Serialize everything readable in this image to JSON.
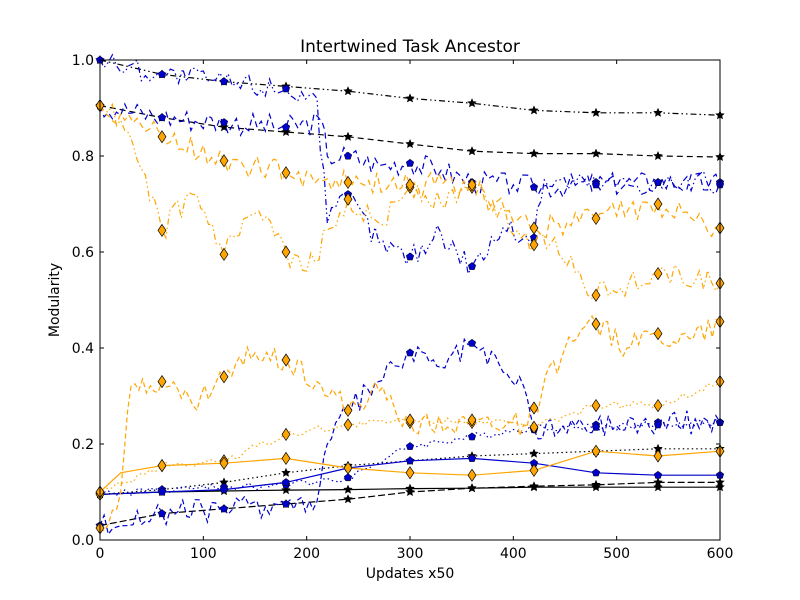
{
  "chart_data": {
    "type": "line",
    "title": "Intertwined Task Ancestor",
    "xlabel": "Updates x50",
    "ylabel": "Modularity",
    "xlim": [
      0,
      600
    ],
    "ylim": [
      0.0,
      1.0
    ],
    "xticks": [
      0,
      100,
      200,
      300,
      400,
      500,
      600
    ],
    "xtick_labels": [
      "0",
      "100",
      "200",
      "300",
      "400",
      "500",
      "600"
    ],
    "yticks": [
      0.0,
      0.2,
      0.4,
      0.6,
      0.8,
      1.0
    ],
    "ytick_labels": [
      "0.0",
      "0.2",
      "0.4",
      "0.6",
      "0.8",
      "1.0"
    ],
    "grid": false,
    "legend": "none",
    "colors": {
      "black": "#000000",
      "blue": "#0000cc",
      "orange": "#ffa500"
    },
    "series": [
      {
        "color": "black",
        "linestyle": "dashdot-dot",
        "marker": "star",
        "points": [
          [
            0,
            1.0
          ],
          [
            60,
            0.97
          ],
          [
            120,
            0.955
          ],
          [
            180,
            0.945
          ],
          [
            240,
            0.935
          ],
          [
            300,
            0.92
          ],
          [
            360,
            0.91
          ],
          [
            420,
            0.895
          ],
          [
            480,
            0.89
          ],
          [
            540,
            0.89
          ],
          [
            600,
            0.885
          ]
        ]
      },
      {
        "color": "black",
        "linestyle": "dashed",
        "marker": "star",
        "points": [
          [
            0,
            0.905
          ],
          [
            60,
            0.88
          ],
          [
            120,
            0.86
          ],
          [
            180,
            0.85
          ],
          [
            240,
            0.84
          ],
          [
            300,
            0.825
          ],
          [
            360,
            0.81
          ],
          [
            420,
            0.805
          ],
          [
            480,
            0.805
          ],
          [
            540,
            0.8
          ],
          [
            600,
            0.798
          ]
        ]
      },
      {
        "color": "black",
        "linestyle": "dotted",
        "marker": "star",
        "points": [
          [
            0,
            0.095
          ],
          [
            60,
            0.105
          ],
          [
            120,
            0.12
          ],
          [
            180,
            0.14
          ],
          [
            240,
            0.155
          ],
          [
            300,
            0.165
          ],
          [
            360,
            0.175
          ],
          [
            420,
            0.18
          ],
          [
            480,
            0.185
          ],
          [
            540,
            0.19
          ],
          [
            600,
            0.19
          ]
        ]
      },
      {
        "color": "black",
        "linestyle": "solid",
        "marker": "star",
        "points": [
          [
            0,
            0.095
          ],
          [
            60,
            0.1
          ],
          [
            120,
            0.102
          ],
          [
            180,
            0.104
          ],
          [
            240,
            0.105
          ],
          [
            300,
            0.107
          ],
          [
            360,
            0.108
          ],
          [
            420,
            0.11
          ],
          [
            480,
            0.11
          ],
          [
            540,
            0.11
          ],
          [
            600,
            0.11
          ]
        ]
      },
      {
        "color": "black",
        "linestyle": "dashed2",
        "marker": "star",
        "points": [
          [
            0,
            0.03
          ],
          [
            60,
            0.055
          ],
          [
            120,
            0.065
          ],
          [
            180,
            0.075
          ],
          [
            240,
            0.085
          ],
          [
            300,
            0.1
          ],
          [
            360,
            0.108
          ],
          [
            420,
            0.112
          ],
          [
            480,
            0.115
          ],
          [
            540,
            0.12
          ],
          [
            600,
            0.12
          ]
        ]
      },
      {
        "color": "blue",
        "linestyle": "dashdot-dot",
        "marker": "pentagon",
        "points": [
          [
            0,
            1.0
          ],
          [
            60,
            0.97
          ],
          [
            120,
            0.955
          ],
          [
            180,
            0.94
          ],
          [
            210,
            0.92
          ],
          [
            220,
            0.66
          ],
          [
            240,
            0.72
          ],
          [
            270,
            0.62
          ],
          [
            300,
            0.59
          ],
          [
            330,
            0.64
          ],
          [
            360,
            0.57
          ],
          [
            390,
            0.65
          ],
          [
            420,
            0.63
          ],
          [
            430,
            0.75
          ],
          [
            480,
            0.745
          ],
          [
            540,
            0.745
          ],
          [
            600,
            0.745
          ]
        ]
      },
      {
        "color": "blue",
        "linestyle": "dashed",
        "marker": "pentagon",
        "points": [
          [
            0,
            0.905
          ],
          [
            60,
            0.88
          ],
          [
            120,
            0.87
          ],
          [
            180,
            0.86
          ],
          [
            215,
            0.87
          ],
          [
            220,
            0.8
          ],
          [
            240,
            0.8
          ],
          [
            270,
            0.78
          ],
          [
            300,
            0.785
          ],
          [
            330,
            0.77
          ],
          [
            360,
            0.745
          ],
          [
            400,
            0.74
          ],
          [
            420,
            0.735
          ],
          [
            480,
            0.74
          ],
          [
            540,
            0.745
          ],
          [
            600,
            0.74
          ]
        ]
      },
      {
        "color": "blue",
        "linestyle": "dashed3",
        "marker": "pentagon",
        "points": [
          [
            0,
            0.03
          ],
          [
            60,
            0.055
          ],
          [
            120,
            0.065
          ],
          [
            180,
            0.075
          ],
          [
            210,
            0.08
          ],
          [
            220,
            0.2
          ],
          [
            240,
            0.27
          ],
          [
            270,
            0.33
          ],
          [
            300,
            0.39
          ],
          [
            330,
            0.36
          ],
          [
            360,
            0.41
          ],
          [
            390,
            0.35
          ],
          [
            410,
            0.32
          ],
          [
            420,
            0.23
          ],
          [
            480,
            0.24
          ],
          [
            540,
            0.245
          ],
          [
            600,
            0.245
          ]
        ]
      },
      {
        "color": "blue",
        "linestyle": "dotted",
        "marker": "pentagon",
        "points": [
          [
            0,
            0.095
          ],
          [
            60,
            0.105
          ],
          [
            120,
            0.11
          ],
          [
            180,
            0.115
          ],
          [
            240,
            0.13
          ],
          [
            300,
            0.195
          ],
          [
            360,
            0.215
          ],
          [
            420,
            0.235
          ],
          [
            480,
            0.235
          ],
          [
            540,
            0.24
          ],
          [
            600,
            0.245
          ]
        ]
      },
      {
        "color": "blue",
        "linestyle": "solid",
        "marker": "pentagon",
        "points": [
          [
            0,
            0.095
          ],
          [
            60,
            0.1
          ],
          [
            120,
            0.105
          ],
          [
            180,
            0.12
          ],
          [
            240,
            0.15
          ],
          [
            300,
            0.165
          ],
          [
            360,
            0.17
          ],
          [
            420,
            0.16
          ],
          [
            480,
            0.14
          ],
          [
            540,
            0.135
          ],
          [
            600,
            0.135
          ]
        ]
      },
      {
        "color": "orange",
        "linestyle": "dashdot-dot",
        "marker": "diamond",
        "points": [
          [
            0,
            0.905
          ],
          [
            20,
            0.875
          ],
          [
            60,
            0.645
          ],
          [
            90,
            0.72
          ],
          [
            120,
            0.595
          ],
          [
            150,
            0.68
          ],
          [
            180,
            0.6
          ],
          [
            200,
            0.56
          ],
          [
            240,
            0.71
          ],
          [
            270,
            0.66
          ],
          [
            300,
            0.735
          ],
          [
            330,
            0.7
          ],
          [
            360,
            0.735
          ],
          [
            420,
            0.615
          ],
          [
            440,
            0.63
          ],
          [
            480,
            0.51
          ],
          [
            540,
            0.555
          ],
          [
            600,
            0.535
          ]
        ]
      },
      {
        "color": "orange",
        "linestyle": "dashed",
        "marker": "diamond",
        "points": [
          [
            0,
            0.905
          ],
          [
            60,
            0.84
          ],
          [
            120,
            0.79
          ],
          [
            180,
            0.765
          ],
          [
            240,
            0.745
          ],
          [
            300,
            0.74
          ],
          [
            360,
            0.74
          ],
          [
            420,
            0.65
          ],
          [
            480,
            0.67
          ],
          [
            540,
            0.7
          ],
          [
            600,
            0.65
          ]
        ]
      },
      {
        "color": "orange",
        "linestyle": "dashed3",
        "marker": "diamond",
        "points": [
          [
            0,
            0.025
          ],
          [
            20,
            0.1
          ],
          [
            30,
            0.32
          ],
          [
            60,
            0.33
          ],
          [
            90,
            0.28
          ],
          [
            120,
            0.34
          ],
          [
            150,
            0.39
          ],
          [
            180,
            0.375
          ],
          [
            210,
            0.33
          ],
          [
            240,
            0.27
          ],
          [
            270,
            0.31
          ],
          [
            300,
            0.245
          ],
          [
            360,
            0.245
          ],
          [
            410,
            0.24
          ],
          [
            420,
            0.275
          ],
          [
            450,
            0.4
          ],
          [
            480,
            0.45
          ],
          [
            510,
            0.4
          ],
          [
            540,
            0.43
          ],
          [
            570,
            0.42
          ],
          [
            600,
            0.455
          ]
        ]
      },
      {
        "color": "orange",
        "linestyle": "dotted",
        "marker": "diamond",
        "points": [
          [
            0,
            0.095
          ],
          [
            60,
            0.155
          ],
          [
            120,
            0.165
          ],
          [
            180,
            0.22
          ],
          [
            240,
            0.24
          ],
          [
            300,
            0.25
          ],
          [
            360,
            0.25
          ],
          [
            420,
            0.235
          ],
          [
            480,
            0.28
          ],
          [
            540,
            0.28
          ],
          [
            600,
            0.33
          ]
        ]
      },
      {
        "color": "orange",
        "linestyle": "solid",
        "marker": "diamond",
        "points": [
          [
            0,
            0.1
          ],
          [
            20,
            0.14
          ],
          [
            60,
            0.155
          ],
          [
            120,
            0.16
          ],
          [
            180,
            0.17
          ],
          [
            240,
            0.15
          ],
          [
            300,
            0.14
          ],
          [
            360,
            0.135
          ],
          [
            420,
            0.145
          ],
          [
            480,
            0.185
          ],
          [
            540,
            0.175
          ],
          [
            600,
            0.185
          ]
        ]
      }
    ]
  }
}
